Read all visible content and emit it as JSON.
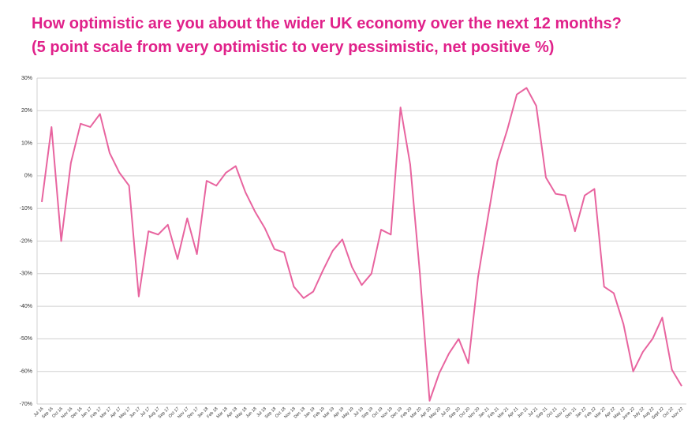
{
  "chart_data": {
    "type": "line",
    "title": "How optimistic are you about the wider UK economy over the next 12 months?",
    "subtitle": "(5 point scale from very optimistic to very pessimistic, net positive %)",
    "categories": [
      "Jul 16",
      "Sep 16",
      "Oct 16",
      "Nov 16",
      "Dec 16",
      "Jan 17",
      "Feb 17",
      "Mar 17",
      "Apr 17",
      "May 17",
      "Jun 17",
      "Jul 17",
      "Aug 17",
      "Sep 17",
      "Oct 17",
      "Nov 17",
      "Dec 17",
      "Jan 18",
      "Feb 18",
      "Mar 18",
      "Apr 18",
      "May 18",
      "Jun 18",
      "Jul 18",
      "Sep 18",
      "Oct 18",
      "Nov 18",
      "Dec 18",
      "Jan 19",
      "Feb 19",
      "Mar 19",
      "Apr 19",
      "May 19",
      "Jul 19",
      "Sep 19",
      "Oct 19",
      "Nov 19",
      "Dec 19",
      "Feb 20",
      "Mar 20",
      "Apr 20",
      "May 20",
      "Jul 20",
      "Sep 20",
      "Oct 20",
      "Nov 20",
      "Jan 21",
      "Feb 21",
      "Mar 21",
      "Apr 21",
      "Jun 21",
      "Jul 21",
      "Sep 21",
      "Oct 21",
      "Nov 21",
      "Dec 21",
      "Jan 22",
      "Feb 22",
      "Mar 22",
      "Apr 22",
      "May 22",
      "June 22",
      "July 22",
      "Aug 22",
      "Sept 22",
      "Oct 22",
      "Nov 22"
    ],
    "series": [
      {
        "name": "Net positive",
        "color": "#e8649f",
        "values": [
          -8,
          15,
          -20,
          4,
          16,
          15,
          19,
          7,
          1,
          -3,
          -37,
          -17,
          -18,
          -15,
          -25.5,
          -13,
          -24,
          -1.5,
          -3,
          1,
          3,
          -5,
          -11,
          -16,
          -22.5,
          -23.5,
          -34,
          -37.5,
          -35.5,
          -29,
          -23,
          -19.5,
          -28,
          -33.5,
          -30,
          -16.5,
          -18,
          21,
          3.5,
          -30,
          -69,
          -60.5,
          -54.5,
          -50,
          -57.5,
          -31,
          -13,
          4.5,
          14,
          25,
          27,
          21.5,
          -0.5,
          -5.5,
          -6,
          -17,
          -6,
          -4,
          -34,
          -36,
          -45.5,
          -60,
          -54,
          -50,
          -43.5,
          -59.5,
          -64.5
        ]
      }
    ],
    "ylim": [
      -70,
      30
    ],
    "yticks": [
      {
        "value": -70,
        "label": "-70%"
      },
      {
        "value": -60,
        "label": "-60%"
      },
      {
        "value": -50,
        "label": "-50%"
      },
      {
        "value": -40,
        "label": "-40%"
      },
      {
        "value": -30,
        "label": "-30%"
      },
      {
        "value": -20,
        "label": "-20%"
      },
      {
        "value": -10,
        "label": "-10%"
      },
      {
        "value": 0,
        "label": "0%"
      },
      {
        "value": 10,
        "label": "10%"
      },
      {
        "value": 20,
        "label": "20%"
      },
      {
        "value": 30,
        "label": "30%"
      }
    ],
    "grid": true
  }
}
